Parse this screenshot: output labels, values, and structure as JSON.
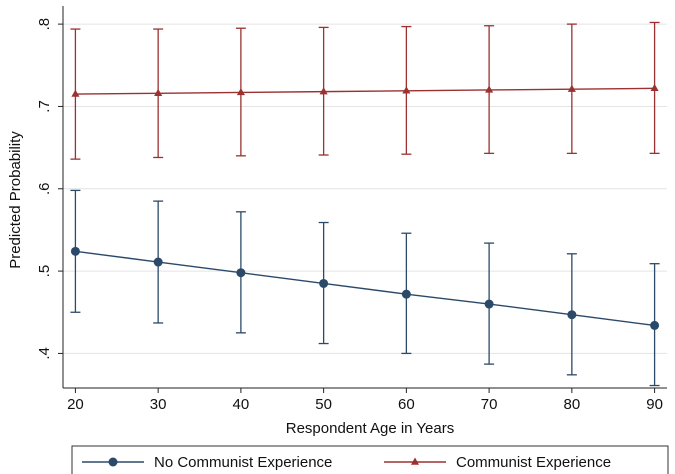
{
  "chart_data": {
    "type": "line",
    "title": "",
    "xlabel": "Respondent Age in Years",
    "ylabel": "Predicted Probability",
    "x": [
      20,
      30,
      40,
      50,
      60,
      70,
      80,
      90
    ],
    "xticks": [
      20,
      30,
      40,
      50,
      60,
      70,
      80,
      90
    ],
    "xtick_labels": [
      "20",
      "30",
      "40",
      "50",
      "60",
      "70",
      "80",
      "90"
    ],
    "yticks": [
      0.4,
      0.5,
      0.6,
      0.7,
      0.8
    ],
    "ytick_labels": [
      ".4",
      ".5",
      ".6",
      ".7",
      ".8"
    ],
    "xlim": [
      18.5,
      91.5
    ],
    "ylim": [
      0.358,
      0.822
    ],
    "grid": true,
    "legend_position": "bottom",
    "series": [
      {
        "name": "No Communist Experience",
        "marker": "circle",
        "color": "#2b4a6a",
        "values": [
          0.524,
          0.511,
          0.498,
          0.485,
          0.472,
          0.46,
          0.447,
          0.434
        ],
        "lower": [
          0.45,
          0.437,
          0.425,
          0.412,
          0.4,
          0.387,
          0.374,
          0.361
        ],
        "upper": [
          0.598,
          0.585,
          0.572,
          0.559,
          0.546,
          0.534,
          0.521,
          0.509
        ]
      },
      {
        "name": "Communist Experience",
        "marker": "triangle",
        "color": "#9b3131",
        "values": [
          0.715,
          0.716,
          0.717,
          0.718,
          0.719,
          0.72,
          0.721,
          0.722
        ],
        "lower": [
          0.636,
          0.638,
          0.64,
          0.641,
          0.642,
          0.643,
          0.643,
          0.643
        ],
        "upper": [
          0.794,
          0.794,
          0.795,
          0.796,
          0.797,
          0.798,
          0.8,
          0.802
        ]
      }
    ]
  }
}
